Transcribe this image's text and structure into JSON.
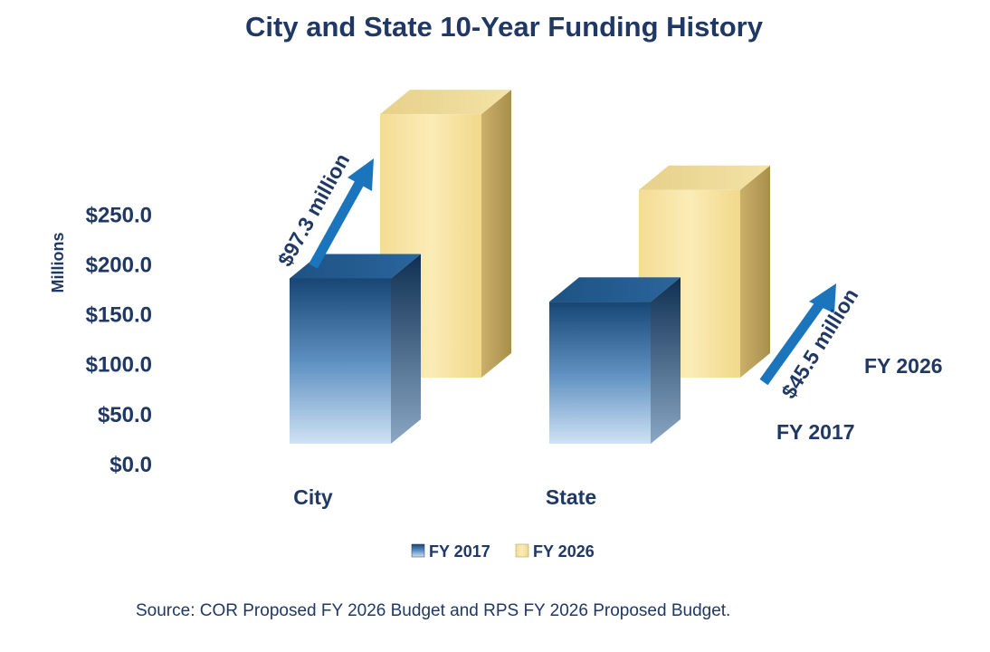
{
  "chart_data": {
    "type": "bar",
    "title": "City and State 10-Year Funding History",
    "ylabel": "Millions",
    "xlabel": "",
    "ylim": [
      0,
      250
    ],
    "yticks": [
      "$0.0",
      "$50.0",
      "$100.0",
      "$150.0",
      "$200.0",
      "$250.0"
    ],
    "categories": [
      "City",
      "State"
    ],
    "series": [
      {
        "name": "FY 2017",
        "values": [
          163,
          140
        ]
      },
      {
        "name": "FY 2026",
        "values": [
          261,
          186
        ]
      }
    ],
    "legend_position": "bottom",
    "grid": false,
    "annotations": [
      {
        "text": "$97.3 million",
        "category": "City"
      },
      {
        "text": "$45.5 million",
        "category": "State"
      }
    ],
    "series_side_labels": [
      "FY 2026",
      "FY 2017"
    ],
    "colors": {
      "FY 2017": "#2e6da4",
      "FY 2026": "#f7e3a1",
      "arrow": "#1b75bc",
      "text": "#1f3864"
    }
  },
  "source": "Source: COR Proposed FY 2026 Budget and RPS FY 2026 Proposed Budget."
}
